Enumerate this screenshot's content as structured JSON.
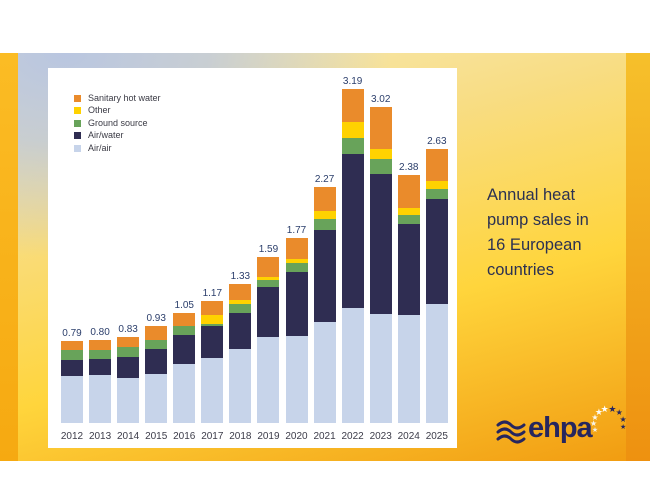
{
  "slide": {
    "caption_lines": [
      "Annual heat",
      "pump sales in",
      "16 European",
      "countries"
    ],
    "logo": {
      "text": "ehpa",
      "wave_icon": "triple-wave-icon",
      "stars_icon": "eu-stars-arc-icon"
    }
  },
  "chart_data": {
    "type": "bar",
    "stacked": true,
    "title": "",
    "xlabel": "",
    "ylabel": "",
    "grid": false,
    "value_axis_visible": false,
    "legend_position": "top-left",
    "legend_order_top_to_bottom": [
      "Sanitary hot water",
      "Other",
      "Ground source",
      "Air/water",
      "Air/air"
    ],
    "categories": [
      "2012",
      "2013",
      "2014",
      "2015",
      "2016",
      "2017",
      "2018",
      "2019",
      "2020",
      "2021",
      "2022",
      "2023",
      "2024",
      "2025"
    ],
    "series": [
      {
        "name": "Air/air",
        "color": "#c7d4ea",
        "values": [
          0.45,
          0.46,
          0.43,
          0.47,
          0.56,
          0.62,
          0.71,
          0.82,
          0.83,
          0.97,
          1.1,
          1.04,
          1.03,
          1.14
        ]
      },
      {
        "name": "Air/water",
        "color": "#2f2d52",
        "values": [
          0.15,
          0.15,
          0.2,
          0.24,
          0.28,
          0.31,
          0.34,
          0.48,
          0.61,
          0.88,
          1.47,
          1.34,
          0.87,
          1.0
        ]
      },
      {
        "name": "Ground source",
        "color": "#68a35a",
        "values": [
          0.1,
          0.09,
          0.1,
          0.09,
          0.09,
          0.02,
          0.09,
          0.07,
          0.09,
          0.11,
          0.15,
          0.14,
          0.09,
          0.1
        ]
      },
      {
        "name": "Other",
        "color": "#ffd200",
        "values": [
          0.0,
          0.0,
          0.0,
          0.0,
          0.0,
          0.09,
          0.04,
          0.03,
          0.04,
          0.08,
          0.15,
          0.1,
          0.07,
          0.08
        ]
      },
      {
        "name": "Sanitary hot water",
        "color": "#ea8b2b",
        "values": [
          0.09,
          0.1,
          0.1,
          0.13,
          0.12,
          0.13,
          0.15,
          0.19,
          0.2,
          0.23,
          0.32,
          0.4,
          0.32,
          0.31
        ]
      }
    ],
    "bar_total_labels": [
      "0.79",
      "0.80",
      "0.83",
      "0.93",
      "1.05",
      "1.17",
      "1.33",
      "1.59",
      "1.77",
      "2.27",
      "3.19",
      "3.02",
      "2.38",
      "2.63"
    ]
  },
  "colors": {
    "sanitary_hot_water": "#ea8b2b",
    "other": "#ffd200",
    "ground_source": "#68a35a",
    "air_water": "#2f2d52",
    "air_air": "#c7d4ea",
    "value_label": "#2b3e6b",
    "caption_text": "#2b3152",
    "logo_navy": "#26265e",
    "slide_gold": "#ffd53c",
    "slide_orange": "#f19b10"
  }
}
